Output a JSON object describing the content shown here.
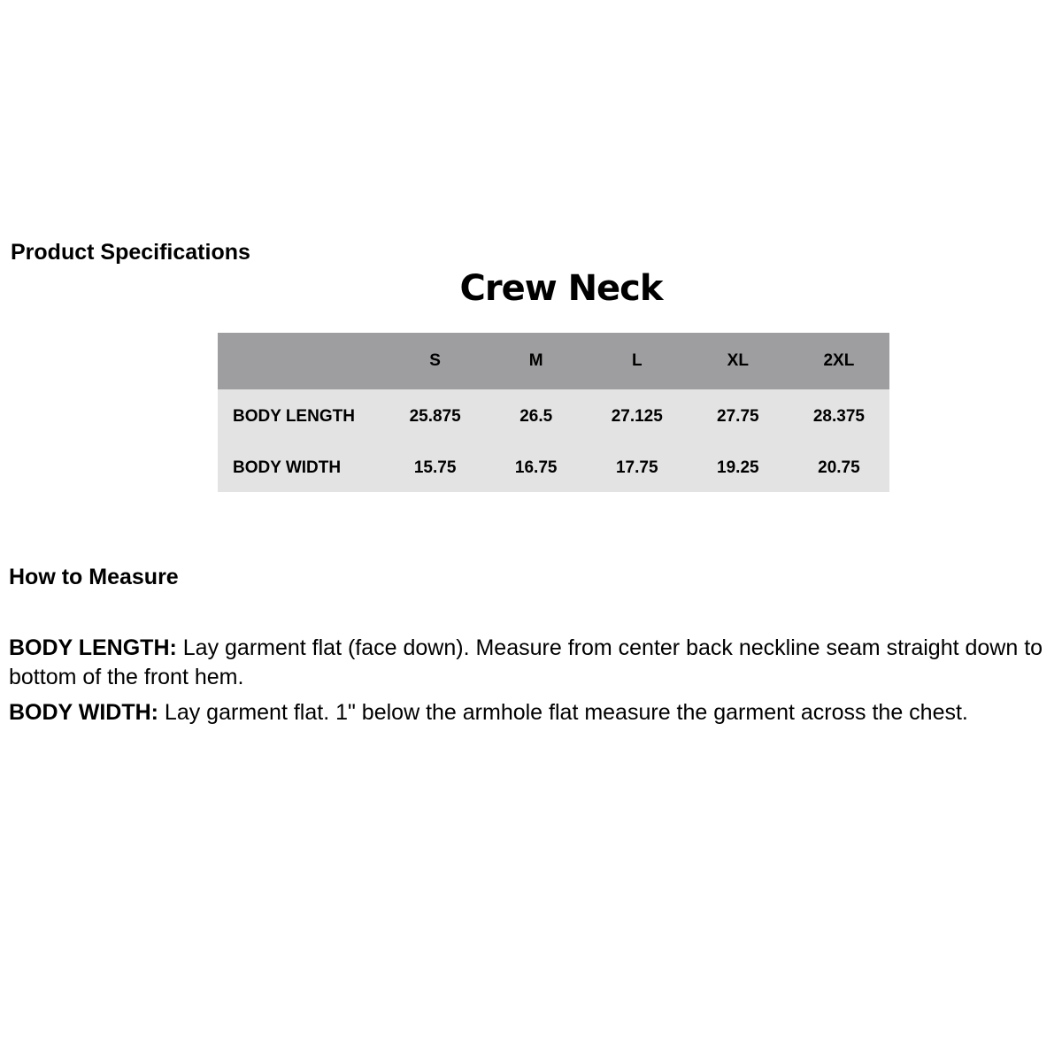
{
  "spec_heading": "Product Specifications",
  "table": {
    "title": "Crew Neck",
    "sizes": [
      "S",
      "M",
      "L",
      "XL",
      "2XL"
    ],
    "rows": [
      {
        "label": "BODY LENGTH",
        "values": [
          "25.875",
          "26.5",
          "27.125",
          "27.75",
          "28.375"
        ]
      },
      {
        "label": "BODY WIDTH",
        "values": [
          "15.75",
          "16.75",
          "17.75",
          "19.25",
          "20.75"
        ]
      }
    ],
    "colors": {
      "header_bg": "#9e9d9f",
      "body_bg": "#e3e3e3"
    }
  },
  "measure_heading": "How to Measure",
  "instructions": [
    {
      "term": "BODY LENGTH:",
      "text": " Lay garment flat (face down). Measure from center back neckline seam straight down to bottom of the front hem."
    },
    {
      "term": "BODY WIDTH:",
      "text": " Lay garment flat. 1\" below the armhole flat measure the garment across the chest."
    }
  ]
}
